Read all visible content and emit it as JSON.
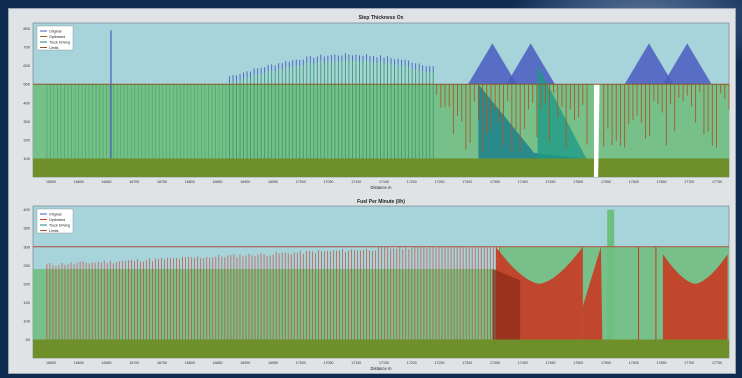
{
  "chart_data": [
    {
      "type": "bar",
      "title": "Step Thickness Ox",
      "xlabel": "Distance m",
      "legend": [
        "Original",
        "Optimized",
        "Truck Driving",
        "Limits"
      ],
      "legend_position": "top-left",
      "grid": false,
      "y_ticks": [
        "800",
        "700",
        "600",
        "500",
        "400",
        "300",
        "200",
        "100"
      ],
      "x_ticks": [
        "16500",
        "16600",
        "16650",
        "16700",
        "16750",
        "16800",
        "16850",
        "16900",
        "16950",
        "17000",
        "17050",
        "17100",
        "17150",
        "17200",
        "17250",
        "17300",
        "17350",
        "17400",
        "17450",
        "17500",
        "17550",
        "17600",
        "17650",
        "17700",
        "17750"
      ],
      "ylim": [
        0,
        830
      ],
      "limit": 500,
      "base": 100,
      "spike": 790,
      "colors": {
        "plot_bg": "#a7d3da",
        "fill": "#78c08a",
        "band": "#6f8f2a",
        "limit": "#8b5a2b",
        "original": "#4a5cc0",
        "optimized": "#a85a2a",
        "teal": "#1c7f8a"
      }
    },
    {
      "type": "bar",
      "title": "Fuel Per Minute (l/h)",
      "xlabel": "Distance m",
      "legend": [
        "Original",
        "Optimized",
        "Truck Driving",
        "Limits"
      ],
      "legend_position": "top-left",
      "grid": false,
      "y_ticks": [
        "400",
        "350",
        "300",
        "250",
        "200",
        "150",
        "100",
        "50"
      ],
      "x_ticks": [
        "16500",
        "16600",
        "16650",
        "16700",
        "16750",
        "16800",
        "16850",
        "16900",
        "16950",
        "17000",
        "17050",
        "17100",
        "17150",
        "17200",
        "17250",
        "17300",
        "17350",
        "17400",
        "17450",
        "17500",
        "17550",
        "17600",
        "17650",
        "17700",
        "17750"
      ],
      "ylim": [
        0,
        410
      ],
      "limit": 300,
      "base": 50,
      "peak": 400,
      "colors": {
        "plot_bg": "#a7d3da",
        "fill": "#78c08a",
        "band": "#6f8f2a",
        "limit": "#b0503a",
        "optimized": "#c83a22",
        "dark": "#8a2a18"
      }
    }
  ]
}
